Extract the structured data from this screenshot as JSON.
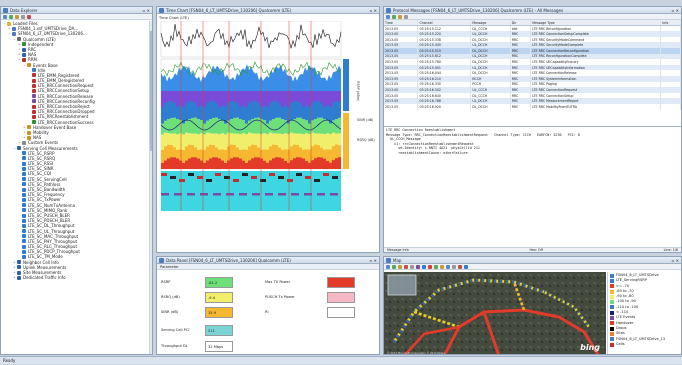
{
  "explorer": {
    "title": "Data Explorer",
    "tree": [
      {
        "level": 0,
        "text": "Loaded Files",
        "color": "#e0b030",
        "exp": "−"
      },
      {
        "level": 1,
        "text": "FSN04_1.xsf_UMTSDrive_DA...",
        "color": "#4a7cc3",
        "exp": "+"
      },
      {
        "level": 1,
        "text": "SFN04_6_LT_UMTSDrive_130206...",
        "color": "#4a7cc3",
        "exp": "−"
      },
      {
        "level": 2,
        "text": "Qualcomm (LTE)",
        "color": "#6a6a6a",
        "exp": "−"
      },
      {
        "level": 3,
        "text": "Independent",
        "color": "#2f8f2f",
        "exp": "+"
      },
      {
        "level": 3,
        "text": "RRC",
        "color": "#3060b0",
        "exp": "+"
      },
      {
        "level": 3,
        "text": "NAS",
        "color": "#3060b0",
        "exp": "+"
      },
      {
        "level": 3,
        "text": "RRM",
        "color": "#b03030",
        "exp": "+"
      },
      {
        "level": 4,
        "text": "Events Base",
        "color": "#d09020",
        "exp": "−"
      },
      {
        "level": 5,
        "text": "Idle",
        "color": "#3a78c8",
        "exp": ""
      },
      {
        "level": 5,
        "text": "LTE_EMM_Registered",
        "color": "#c03030",
        "exp": ""
      },
      {
        "level": 5,
        "text": "LTE_EMM_Deregistered",
        "color": "#c03030",
        "exp": ""
      },
      {
        "level": 5,
        "text": "LTE_RRCConnectionRequest",
        "color": "#c03030",
        "exp": ""
      },
      {
        "level": 5,
        "text": "LTE_RRCConnectionSetup",
        "color": "#c03030",
        "exp": ""
      },
      {
        "level": 5,
        "text": "LTE_RRCConnectionRelease",
        "color": "#7a4aa8",
        "exp": ""
      },
      {
        "level": 5,
        "text": "LTE_RRCConnectionReconfig",
        "color": "#7a4aa8",
        "exp": ""
      },
      {
        "level": 5,
        "text": "LTE_RRCConnectionReject",
        "color": "#c03030",
        "exp": ""
      },
      {
        "level": 5,
        "text": "LTE_RRCConnectionDropped",
        "color": "#c03030",
        "exp": ""
      },
      {
        "level": 5,
        "text": "LTE_RRCReestablishment",
        "color": "#c03030",
        "exp": ""
      },
      {
        "level": 5,
        "text": "LTE_RRCConnectionSuccess",
        "color": "#2f8f2f",
        "exp": ""
      },
      {
        "level": 4,
        "text": "Handover Event Base",
        "color": "#d09020",
        "exp": "+"
      },
      {
        "level": 4,
        "text": "Mobility",
        "color": "#d09020",
        "exp": "+"
      },
      {
        "level": 4,
        "text": "NAS",
        "color": "#d09020",
        "exp": "+"
      },
      {
        "level": 3,
        "text": "Custom Events",
        "color": "#888888",
        "exp": "+"
      },
      {
        "level": 2,
        "text": "Serving Cell Measurements",
        "color": "#3060b0",
        "exp": "−"
      },
      {
        "level": 3,
        "text": "LTE_SC_RSRP",
        "color": "#2e7dd1",
        "exp": ""
      },
      {
        "level": 3,
        "text": "LTE_SC_RSRQ",
        "color": "#2e7dd1",
        "exp": ""
      },
      {
        "level": 3,
        "text": "LTE_SC_RSSI",
        "color": "#2e7dd1",
        "exp": ""
      },
      {
        "level": 3,
        "text": "LTE_SC_SINR",
        "color": "#2e7dd1",
        "exp": ""
      },
      {
        "level": 3,
        "text": "LTE_SC_CQI",
        "color": "#2e7dd1",
        "exp": ""
      },
      {
        "level": 3,
        "text": "LTE_SC_ServingCell",
        "color": "#2e7dd1",
        "exp": ""
      },
      {
        "level": 3,
        "text": "LTE_SC_Pathloss",
        "color": "#2e7dd1",
        "exp": ""
      },
      {
        "level": 3,
        "text": "LTE_SC_Bandwidth",
        "color": "#2e7dd1",
        "exp": ""
      },
      {
        "level": 3,
        "text": "LTE_SC_Frequency",
        "color": "#2e7dd1",
        "exp": ""
      },
      {
        "level": 3,
        "text": "LTE_SC_TxPower",
        "color": "#2e7dd1",
        "exp": ""
      },
      {
        "level": 3,
        "text": "LTE_SC_NumTxAntenna",
        "color": "#2e7dd1",
        "exp": ""
      },
      {
        "level": 3,
        "text": "LTE_SC_MIMO_Rank",
        "color": "#2e7dd1",
        "exp": ""
      },
      {
        "level": 3,
        "text": "LTE_SC_PUSCH_BLER",
        "color": "#2e7dd1",
        "exp": ""
      },
      {
        "level": 3,
        "text": "LTE_SC_PDSCH_BLER",
        "color": "#2e7dd1",
        "exp": ""
      },
      {
        "level": 3,
        "text": "LTE_SC_DL_Throughput",
        "color": "#2e7dd1",
        "exp": ""
      },
      {
        "level": 3,
        "text": "LTE_SC_UL_Throughput",
        "color": "#2e7dd1",
        "exp": ""
      },
      {
        "level": 3,
        "text": "LTE_SC_MAC_Throughput",
        "color": "#2e7dd1",
        "exp": ""
      },
      {
        "level": 3,
        "text": "LTE_SC_PHY_Throughput",
        "color": "#2e7dd1",
        "exp": ""
      },
      {
        "level": 3,
        "text": "LTE_SC_RLC_Throughput",
        "color": "#2e7dd1",
        "exp": ""
      },
      {
        "level": 3,
        "text": "LTE_SC_PDCP_Throughput",
        "color": "#2e7dd1",
        "exp": ""
      },
      {
        "level": 3,
        "text": "LTE_SC_TM_Mode",
        "color": "#2e7dd1",
        "exp": ""
      },
      {
        "level": 2,
        "text": "Neighbor Cell Info",
        "color": "#3060b0",
        "exp": "+"
      },
      {
        "level": 2,
        "text": "Uplink Measurements",
        "color": "#3060b0",
        "exp": "+"
      },
      {
        "level": 2,
        "text": "Site Measurements",
        "color": "#3060b0",
        "exp": "+"
      },
      {
        "level": 2,
        "text": "Dedicated Traffic Info",
        "color": "#3060b0",
        "exp": "+"
      }
    ],
    "status": "All Layers"
  },
  "timechart": {
    "title": "Time Chart [FSN04_6_LT_UMTSDrive_130206] Qualcomm (LTE)",
    "inner_title": "Time Chart (LTE)",
    "axis_label_1": "RSRP (dBm)",
    "axis_label_2": "SINR (dB)",
    "axis_label_3": "RSRQ (dB)"
  },
  "messages": {
    "title": "Protocol Messages [FSN04_6_LT_UMTSDrive_130206] Qualcomm (LTE) - All Messages",
    "columns": [
      "Time",
      "Channel",
      "Message",
      "Dir",
      "Message Type",
      "Info"
    ],
    "rows": [
      [
        "2013.05",
        "03:25:15.112",
        "DL_CCCH",
        "Idle",
        "LTE RRC Reconfiguration",
        ""
      ],
      [
        "2013.05",
        "03:25:15.220",
        "UL_DCCH",
        "RRC",
        "LTE RRC ConnectionSetupComplete",
        ""
      ],
      [
        "2013.05",
        "03:25:15.338",
        "DL_DCCH",
        "RRC",
        "LTE RRC SecurityModeCommand",
        ""
      ],
      [
        "2013.05",
        "03:25:15.440",
        "UL_DCCH",
        "RRC",
        "LTE RRC SecurityModeComplete",
        ""
      ],
      [
        "2013.05",
        "03:25:15.515",
        "DL_DCCH",
        "RRC",
        "LTE RRC ConnectionReconfiguration",
        ""
      ],
      [
        "2013.05",
        "03:25:15.612",
        "UL_DCCH",
        "RRC",
        "LTE RRC ReconfigurationComplete",
        ""
      ],
      [
        "2013.05",
        "03:25:15.780",
        "DL_DCCH",
        "RRC",
        "LTE RRC UECapabilityEnquiry",
        ""
      ],
      [
        "2013.05",
        "03:25:15.901",
        "UL_DCCH",
        "RRC",
        "LTE RRC UECapabilityInformation",
        ""
      ],
      [
        "2013.05",
        "03:25:16.044",
        "DL_DCCH",
        "RRC",
        "LTE RRC ConnectionRelease",
        ""
      ],
      [
        "2013.05",
        "03:25:16.210",
        "BCCH",
        "RRC",
        "LTE RRC SystemInformation",
        ""
      ],
      [
        "2013.05",
        "03:25:16.330",
        "PCCH",
        "RRC",
        "LTE RRC Paging",
        ""
      ],
      [
        "2013.05",
        "03:25:16.502",
        "UL_CCCH",
        "RRC",
        "LTE RRC ConnectionRequest",
        ""
      ],
      [
        "2013.05",
        "03:25:16.640",
        "DL_CCCH",
        "RRC",
        "LTE RRC ConnectionSetup",
        ""
      ],
      [
        "2013.05",
        "03:25:16.788",
        "UL_DCCH",
        "RRC",
        "LTE RRC MeasurementReport",
        ""
      ],
      [
        "2013.05",
        "03:25:16.920",
        "DL_DCCH",
        "RRC",
        "LTE RRC MobilityFromEUTRA",
        ""
      ]
    ],
    "detail": "LTE RRC Connection Reestablishment\nMessage Type: RRC_ConnectionReestablishmentRequest   Channel Type: CCCH   EARFCN: 5230   PCI: 8\n  UL_CCCH_Message\n    c1: rrcConnectionReestablishmentRequest\n      ue-Identity: c-RNTI 4A21  physCellId 211\n      reestablishmentCause: otherFailure",
    "status_left": "Message Info",
    "status_mid": "Hex: Off",
    "status_right": "Line: 1/8"
  },
  "kpi": {
    "title": "Data Panel [FSN04_6_LT_UMTSDrive_130206] Qualcomm (LTE)",
    "header": "Parameter",
    "rows": [
      {
        "label": "RSRP",
        "value": "-81.2",
        "color": "#6ee07a",
        "label2": "Max TX Power",
        "color2": "#e33a2a"
      },
      {
        "label": "RSRQ (dB)",
        "value": "-9.4",
        "color": "#f0ee6a",
        "label2": "PUSCH Tx Power",
        "color2": "#f5b8c4"
      },
      {
        "label": "SINR (dB)",
        "value": "15.9",
        "color": "#f5b830",
        "label2": "RI",
        "color2": "#ffffff"
      },
      {
        "label": "Serving Cell PCI",
        "value": "211",
        "color": "#7ad4d4",
        "label2": "",
        "color2": ""
      },
      {
        "label": "Throughput DL",
        "value": "32 Mbps",
        "color": "#ffffff",
        "label2": "",
        "color2": ""
      }
    ]
  },
  "map": {
    "title": "Map",
    "logo": "bing",
    "copyright": "© 2013 Microsoft Corporation  © 2013 Nokia",
    "legend": [
      {
        "text": "FSN04_6_LT_UMTSDrive",
        "color": "#4a7cc3"
      },
      {
        "text": "LTE_ServingRSRP",
        "color": "#2e7dd1"
      },
      {
        "text": ">= -70",
        "color": "#e33a2a"
      },
      {
        "text": "-80 to -70",
        "color": "#f5b830"
      },
      {
        "text": "-90 to -80",
        "color": "#f0ee6a"
      },
      {
        "text": "-100 to -90",
        "color": "#6ee07a"
      },
      {
        "text": "-110 to -100",
        "color": "#3a78c8"
      },
      {
        "text": "< -110",
        "color": "#1a1a80"
      },
      {
        "text": "LTE Events",
        "color": "#7a4aa8"
      },
      {
        "text": "Handover",
        "color": "#e33a2a"
      },
      {
        "text": "Drops",
        "color": "#000000"
      },
      {
        "text": "Sites",
        "color": "#f08030"
      },
      {
        "text": "FSN04_6_LT_UMTSDrive_13",
        "color": "#4a7cc3"
      },
      {
        "text": "Cells",
        "color": "#c03030"
      }
    ]
  },
  "statusbar": {
    "text": "Ready"
  }
}
